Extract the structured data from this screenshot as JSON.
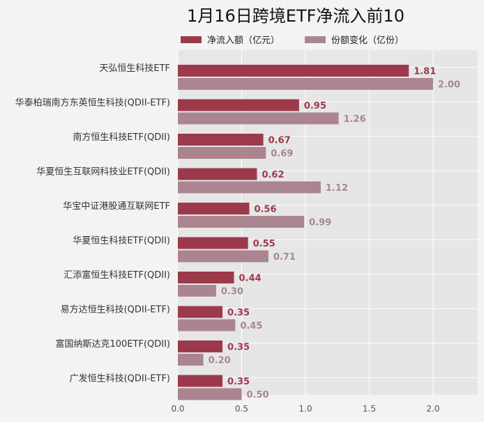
{
  "chart_data": {
    "type": "bar",
    "orientation": "horizontal",
    "title": "1月16日跨境ETF净流入前10",
    "categories": [
      "天弘恒生科技ETF",
      "华泰柏瑞南方东英恒生科技(QDII-ETF)",
      "南方恒生科技ETF(QDII)",
      "华夏恒生互联网科技业ETF(QDII)",
      "华宝中证港股通互联网ETF",
      "华夏恒生科技ETF(QDII)",
      "汇添富恒生科技ETF(QDII)",
      "易方达恒生科技(QDII-ETF)",
      "富国纳斯达克100ETF(QDII)",
      "广发恒生科技(QDII-ETF)"
    ],
    "series": [
      {
        "name": "净流入额（亿元）",
        "color": "#9c3a4c",
        "values": [
          1.81,
          0.95,
          0.67,
          0.62,
          0.56,
          0.55,
          0.44,
          0.35,
          0.35,
          0.35
        ],
        "labels": [
          "1.81",
          "0.95",
          "0.67",
          "0.62",
          "0.56",
          "0.55",
          "0.44",
          "0.35",
          "0.35",
          "0.35"
        ]
      },
      {
        "name": "份额变化（亿份）",
        "color": "#aa8590",
        "values": [
          2.0,
          1.26,
          0.69,
          1.12,
          0.99,
          0.71,
          0.3,
          0.45,
          0.2,
          0.5
        ],
        "labels": [
          "2.00",
          "1.26",
          "0.69",
          "1.12",
          "0.99",
          "0.71",
          "0.30",
          "0.45",
          "0.20",
          "0.50"
        ]
      }
    ],
    "x_ticks": [
      "0.0",
      "0.5",
      "1.0",
      "1.5",
      "2.0"
    ],
    "xlim": [
      0,
      2.35
    ],
    "grid": true,
    "legend_position": "top"
  }
}
